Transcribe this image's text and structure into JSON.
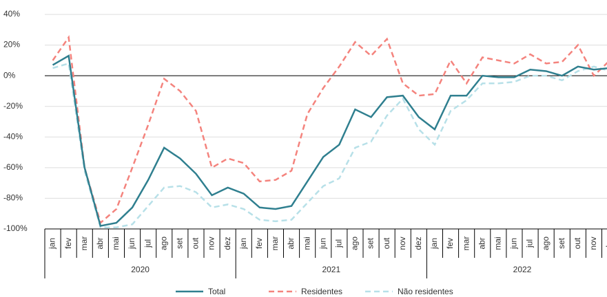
{
  "chart_data": {
    "type": "line",
    "categories": [
      "jan",
      "fev",
      "mar",
      "abr",
      "mai",
      "jun",
      "jul",
      "ago",
      "set",
      "out",
      "nov",
      "dez",
      "jan",
      "fev",
      "mar",
      "abr",
      "mai",
      "jun",
      "jul",
      "ago",
      "set",
      "out",
      "nov",
      "dez",
      "jan",
      "fev",
      "mar",
      "abr",
      "mai",
      "jun",
      "jul",
      "ago",
      "set",
      "out",
      "nov",
      "dez"
    ],
    "years": [
      "2020",
      "2021",
      "2022"
    ],
    "series": [
      {
        "name": "Total",
        "color": "#2f7f8f",
        "dash": false,
        "values": [
          7,
          13,
          -60,
          -98,
          -96,
          -86,
          -68,
          -47,
          -54,
          -64,
          -78,
          -73,
          -77,
          -86,
          -87,
          -85,
          -69,
          -53,
          -45,
          -22,
          -27,
          -14,
          -13,
          -27,
          -35,
          -13,
          -13,
          0,
          -1,
          -1,
          4,
          3,
          0,
          6,
          4,
          5
        ]
      },
      {
        "name": "Residentes",
        "color": "#f4837d",
        "dash": true,
        "values": [
          10,
          25,
          -60,
          -96,
          -87,
          -60,
          -32,
          -2,
          -10,
          -23,
          -60,
          -54,
          -57,
          -69,
          -68,
          -62,
          -25,
          -8,
          6,
          22,
          13,
          24,
          -5,
          -13,
          -12,
          10,
          -5,
          12,
          10,
          8,
          14,
          8,
          9,
          20,
          0,
          10
        ]
      },
      {
        "name": "Não residentes",
        "color": "#b7e0e8",
        "dash": true,
        "values": [
          5,
          8,
          -62,
          -99,
          -99,
          -97,
          -85,
          -73,
          -72,
          -76,
          -86,
          -84,
          -87,
          -94,
          -95,
          -94,
          -83,
          -72,
          -67,
          -47,
          -43,
          -26,
          -15,
          -35,
          -45,
          -23,
          -16,
          -5,
          -5,
          -4,
          0,
          0,
          -3,
          3,
          6,
          3
        ]
      }
    ],
    "ylim": [
      -100,
      40
    ],
    "yticks": [
      {
        "value": -100,
        "label": "-100%"
      },
      {
        "value": -80,
        "label": "-80%"
      },
      {
        "value": -60,
        "label": "-60%"
      },
      {
        "value": -40,
        "label": "-40%"
      },
      {
        "value": -20,
        "label": "-20%"
      },
      {
        "value": 0,
        "label": "0%"
      },
      {
        "value": 20,
        "label": "20%"
      },
      {
        "value": 40,
        "label": "40%"
      }
    ],
    "grid": true,
    "legend": "bottom"
  }
}
